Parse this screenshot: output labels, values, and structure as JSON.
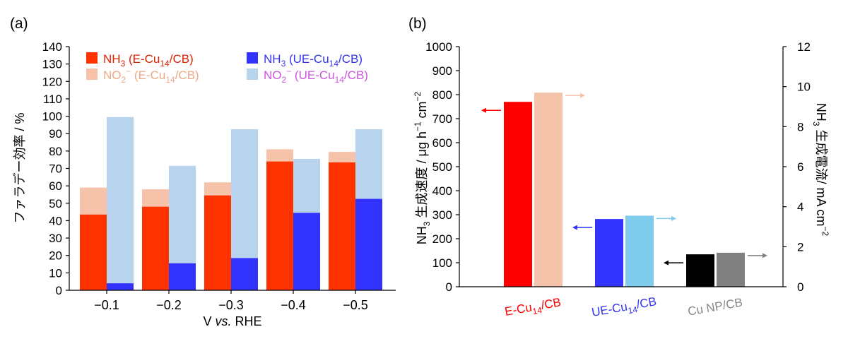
{
  "panel_a_label": "(a)",
  "panel_b_label": "(b)",
  "colors": {
    "nh3_e": "#ff3300",
    "no2_e": "#f7c2aa",
    "nh3_ue": "#3333ff",
    "no2_ue": "#b8d3ee",
    "legend_no2_e_text": "#f0a884",
    "legend_no2_ue_text": "#cc55dd",
    "b_e_nh3": "#ff0000",
    "b_e_cur": "#f5c3a9",
    "b_ue_nh3": "#3333ff",
    "b_ue_cur": "#7fcbee",
    "b_cu_nh3": "#000000",
    "b_cu_cur": "#808080",
    "label_cu": "#888888"
  },
  "chart_data": [
    {
      "type": "bar",
      "title": "",
      "xlabel": "V vs. RHE",
      "xlabel_parts": [
        "V ",
        "vs.",
        " RHE"
      ],
      "ylabel": "ファラデー効率 / %",
      "categories": [
        "−0.1",
        "−0.2",
        "−0.3",
        "−0.4",
        "−0.5"
      ],
      "ylim": [
        0,
        140
      ],
      "yticks": [
        0,
        10,
        20,
        30,
        40,
        50,
        60,
        70,
        80,
        90,
        100,
        110,
        120,
        130,
        140
      ],
      "legend_placement": "top",
      "series": [
        {
          "name": "NH3 (E-Cu14/CB)",
          "values": [
            43.5,
            48,
            54.5,
            74,
            73.5
          ]
        },
        {
          "name": "NO2− (E-Cu14/CB)",
          "values": [
            59,
            58,
            62,
            81,
            79.5
          ]
        },
        {
          "name": "NH3 (UE-Cu14/CB)",
          "values": [
            4,
            15.5,
            18.5,
            44.5,
            52.5
          ]
        },
        {
          "name": "NO2− (UE-Cu14/CB)",
          "values": [
            99.5,
            71.5,
            92.5,
            75.5,
            92.5
          ]
        }
      ],
      "legend": [
        {
          "main": "NH",
          "sub": "3",
          "tail": " (E-Cu",
          "sub2": "14",
          "tail2": "/CB)"
        },
        {
          "main": "NO",
          "sub": "2",
          "sup": "−",
          "tail": " (E-Cu",
          "sub2": "14",
          "tail2": "/CB)"
        },
        {
          "main": "NH",
          "sub": "3",
          "tail": " (UE-Cu",
          "sub2": "14",
          "tail2": "/CB)"
        },
        {
          "main": "NO",
          "sub": "2",
          "sup": "−",
          "tail": " (UE-Cu",
          "sub2": "14",
          "tail2": "/CB)"
        }
      ]
    },
    {
      "type": "bar",
      "title": "",
      "categories": [
        "E-Cu14/CB",
        "UE-Cu14/CB",
        "Cu NP/CB"
      ],
      "category_labels": [
        {
          "a": "E-Cu",
          "sub": "14",
          "b": "/CB"
        },
        {
          "a": "UE-Cu",
          "sub": "14",
          "b": "/CB"
        },
        {
          "a": "Cu NP/CB",
          "sub": "",
          "b": ""
        }
      ],
      "ylabel_left": "NH3 生成速度 / μg h−1 cm−2",
      "ylabel_left_parts": {
        "a": "NH",
        "sub": "3",
        "b": " 生成速度 / μg h",
        "sup1": "−1",
        "c": " cm",
        "sup2": "−2"
      },
      "ylabel_right": "NH3 生成電流/ mA cm−2",
      "ylabel_right_parts": {
        "a": "NH",
        "sub": "3",
        "b": " 生成電流/ mA cm",
        "sup": "−2"
      },
      "ylim_left": [
        0,
        1000
      ],
      "yticks_left": [
        0,
        100,
        200,
        300,
        400,
        500,
        600,
        700,
        800,
        900,
        1000
      ],
      "ylim_right": [
        0,
        12
      ],
      "yticks_right": [
        0,
        2,
        4,
        6,
        8,
        10,
        12
      ],
      "series": [
        {
          "name": "NH3 生成速度",
          "axis": "left",
          "values": [
            770,
            282,
            135
          ]
        },
        {
          "name": "NH3 生成電流",
          "axis": "right",
          "values": [
            9.7,
            3.55,
            1.7
          ]
        }
      ]
    }
  ]
}
